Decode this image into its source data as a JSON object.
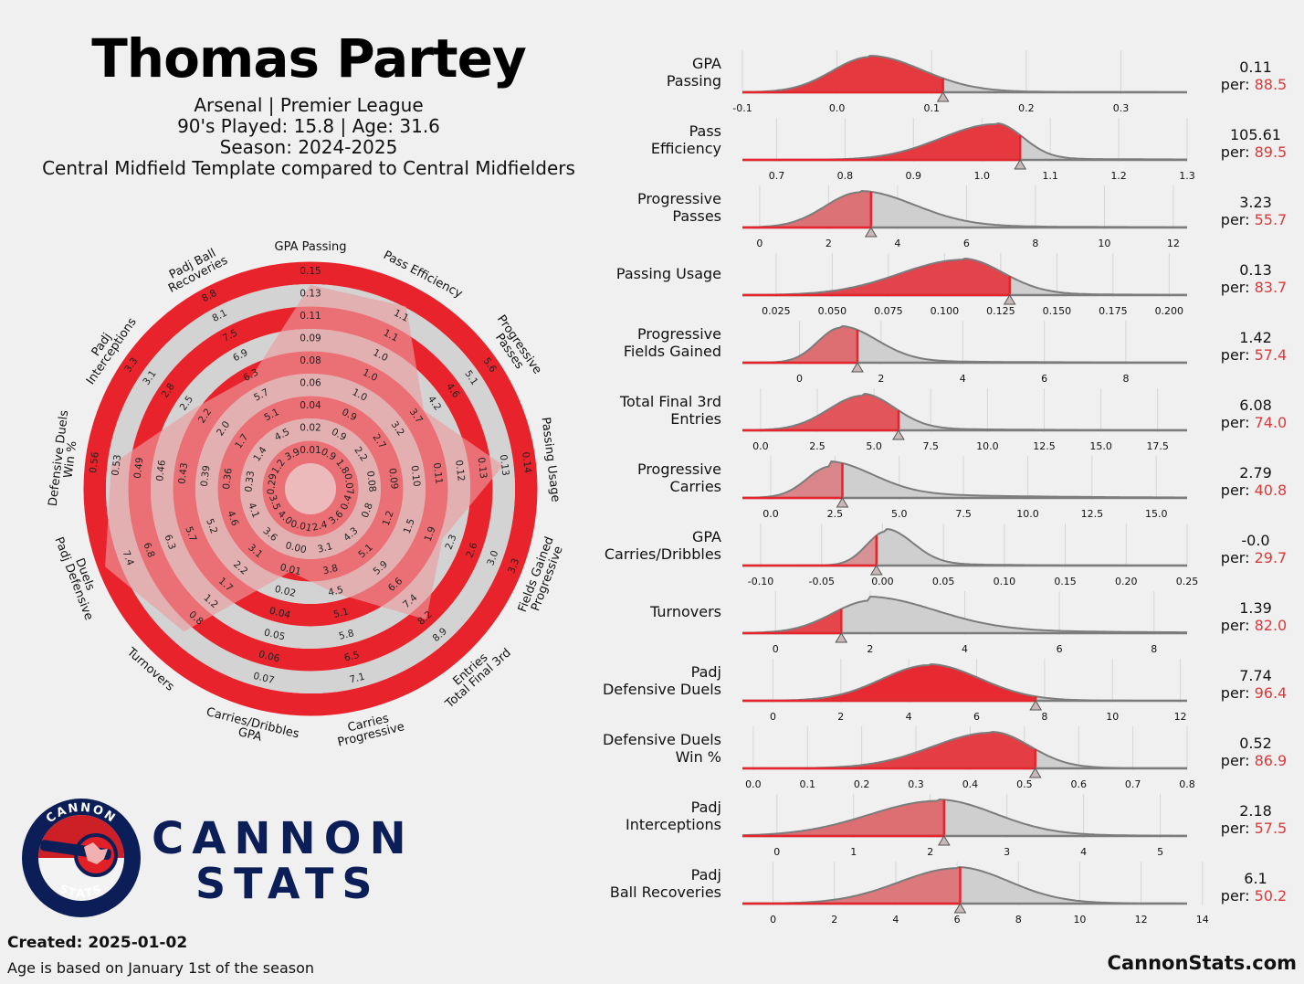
{
  "header": {
    "player_name": "Thomas Partey",
    "club_league": "Arsenal | Premier League",
    "played_age": "90's Played: 15.8 | Age: 31.6",
    "season": "Season: 2024-2025",
    "template": "Central Midfield Template compared to Central Midfielders"
  },
  "footer": {
    "created": "Created: 2025-01-02",
    "age_note": "Age is based on January 1st of the season",
    "site": "CannonStats.com"
  },
  "logo": {
    "ring_top": "CANNON",
    "ring_bottom": "STATS",
    "word1": "CANNON",
    "word2": "STATS"
  },
  "per_prefix": "per: ",
  "colors": {
    "red": "#e8232b",
    "red_text": "#d93a3a",
    "ring": "#d3d3d3",
    "grey_fill": "#cfcfcf",
    "grey_line": "#7c7c7c",
    "navy": "#0b1e57"
  },
  "chart_data": [
    {
      "type": "radar",
      "title": "Central Midfield Template",
      "categories": [
        {
          "label": [
            "GPA Passing"
          ],
          "ticks": [
            "0.01",
            "0.02",
            "0.04",
            "0.06",
            "0.08",
            "0.09",
            "0.11",
            "0.13",
            "0.15"
          ],
          "percentile": 88.5
        },
        {
          "label": [
            "Pass Efficiency"
          ],
          "ticks": [
            "0.9",
            "0.9",
            "0.9",
            "1.0",
            "1.0",
            "1.0",
            "1.1",
            "1.1"
          ],
          "percentile": 89.5
        },
        {
          "label": [
            "Progressive",
            "Passes"
          ],
          "ticks": [
            "1.8",
            "2.2",
            "2.7",
            "3.2",
            "3.7",
            "4.2",
            "4.6",
            "5.1",
            "5.6"
          ],
          "percentile": 55.7
        },
        {
          "label": [
            "Passing Usage"
          ],
          "ticks": [
            "0.07",
            "0.08",
            "0.09",
            "0.10",
            "0.11",
            "0.12",
            "0.13",
            "0.13",
            "0.14"
          ],
          "percentile": 83.7
        },
        {
          "label": [
            "Progressive",
            "Fields Gained"
          ],
          "ticks": [
            "0.4",
            "0.8",
            "1.2",
            "1.5",
            "1.9",
            "2.3",
            "2.6",
            "3.0",
            "3.3"
          ],
          "percentile": 57.4
        },
        {
          "label": [
            "Total Final 3rd",
            "Entries"
          ],
          "ticks": [
            "3.6",
            "4.3",
            "5.1",
            "5.9",
            "6.6",
            "7.4",
            "8.2",
            "8.9"
          ],
          "percentile": 74.0
        },
        {
          "label": [
            "Progressive",
            "Carries"
          ],
          "ticks": [
            "2.4",
            "3.1",
            "3.8",
            "4.5",
            "5.1",
            "5.8",
            "6.5",
            "7.1"
          ],
          "percentile": 40.8
        },
        {
          "label": [
            "GPA",
            "Carries/Dribbles"
          ],
          "ticks": [
            "0.01",
            "0.00",
            "0.01",
            "0.02",
            "0.04",
            "0.05",
            "0.06",
            "0.07"
          ],
          "percentile": 29.7
        },
        {
          "label": [
            "Turnovers"
          ],
          "ticks": [
            "4.0",
            "3.6",
            "3.1",
            "2.2",
            "1.7",
            "1.2",
            "0.8"
          ],
          "percentile": 82.0
        },
        {
          "label": [
            "Padj Defensive",
            "Duels"
          ],
          "ticks": [
            "3.5",
            "4.1",
            "4.6",
            "5.2",
            "5.7",
            "6.3",
            "6.8",
            "7.4"
          ],
          "percentile": 96.4
        },
        {
          "label": [
            "Defensive Duels",
            "Win %"
          ],
          "ticks": [
            "0.29",
            "0.33",
            "0.36",
            "0.39",
            "0.43",
            "0.46",
            "0.49",
            "0.53",
            "0.56"
          ],
          "percentile": 86.9
        },
        {
          "label": [
            "Padj",
            "Interceptions"
          ],
          "ticks": [
            "1.2",
            "1.4",
            "1.7",
            "2.0",
            "2.2",
            "2.5",
            "2.8",
            "3.1",
            "3.3"
          ],
          "percentile": 57.5
        },
        {
          "label": [
            "Padj Ball",
            "Recoveries"
          ],
          "ticks": [
            "3.9",
            "4.5",
            "5.1",
            "5.7",
            "6.3",
            "6.9",
            "7.5",
            "8.1",
            "8.8"
          ],
          "percentile": 50.2
        }
      ]
    },
    {
      "type": "area",
      "description": "Distribution of each metric among Central Midfielders with the player's value marked",
      "metrics": [
        {
          "label": [
            "GPA",
            "Passing"
          ],
          "value": "0.11",
          "percentile": "88.5",
          "xlim": [
            -0.1,
            0.37
          ],
          "ticks": [
            "-0.1",
            "0.0",
            "0.1",
            "0.2",
            "0.3"
          ],
          "tick_values": [
            -0.1,
            0.0,
            0.1,
            0.2,
            0.3
          ],
          "player": 0.112,
          "mode": 0.035,
          "spread_left": 0.04,
          "spread_right": 0.055,
          "tail": 0.12,
          "tail_weight": 0.05
        },
        {
          "label": [
            "Pass",
            "Efficiency"
          ],
          "value": "105.61",
          "percentile": "89.5",
          "xlim": [
            0.65,
            1.3
          ],
          "ticks": [
            "0.7",
            "0.8",
            "0.9",
            "1.0",
            "1.1",
            "1.2",
            "1.3"
          ],
          "tick_values": [
            0.7,
            0.8,
            0.9,
            1.0,
            1.1,
            1.2,
            1.3
          ],
          "player": 1.056,
          "mode": 1.02,
          "spread_left": 0.08,
          "spread_right": 0.04,
          "tail": 0.25,
          "tail_weight": 0.04
        },
        {
          "label": [
            "Progressive",
            "Passes"
          ],
          "value": "3.23",
          "percentile": "55.7",
          "xlim": [
            -0.5,
            12.4
          ],
          "ticks": [
            "0",
            "2",
            "4",
            "6",
            "8",
            "10",
            "12"
          ],
          "tick_values": [
            0,
            2,
            4,
            6,
            8,
            10,
            12
          ],
          "player": 3.23,
          "mode": 2.9,
          "spread_left": 1.0,
          "spread_right": 1.6,
          "tail": 5.5,
          "tail_weight": 0.06
        },
        {
          "label": [
            "Passing Usage"
          ],
          "value": "0.13",
          "percentile": "83.7",
          "xlim": [
            0.01,
            0.208
          ],
          "ticks": [
            "0.025",
            "0.050",
            "0.075",
            "0.100",
            "0.125",
            "0.150",
            "0.175",
            "0.200"
          ],
          "tick_values": [
            0.025,
            0.05,
            0.075,
            0.1,
            0.125,
            0.15,
            0.175,
            0.2
          ],
          "player": 0.129,
          "mode": 0.108,
          "spread_left": 0.028,
          "spread_right": 0.018,
          "tail": 0.06,
          "tail_weight": 0.05
        },
        {
          "label": [
            "Progressive",
            "Fields Gained"
          ],
          "value": "1.42",
          "percentile": "57.4",
          "xlim": [
            -1.4,
            9.5
          ],
          "ticks": [
            "0",
            "2",
            "4",
            "6",
            "8"
          ],
          "tick_values": [
            0,
            2,
            4,
            6,
            8
          ],
          "player": 1.42,
          "mode": 1.0,
          "spread_left": 0.55,
          "spread_right": 0.9,
          "tail": 3.5,
          "tail_weight": 0.07
        },
        {
          "label": [
            "Total Final 3rd",
            "Entries"
          ],
          "value": "6.08",
          "percentile": "74.0",
          "xlim": [
            -0.8,
            18.8
          ],
          "ticks": [
            "0.0",
            "2.5",
            "5.0",
            "7.5",
            "10.0",
            "12.5",
            "15.0",
            "17.5"
          ],
          "tick_values": [
            0,
            2.5,
            5,
            7.5,
            10,
            12.5,
            15,
            17.5
          ],
          "player": 6.08,
          "mode": 4.5,
          "spread_left": 1.5,
          "spread_right": 1.4,
          "tail": 5.0,
          "tail_weight": 0.08
        },
        {
          "label": [
            "Progressive",
            "Carries"
          ],
          "value": "2.79",
          "percentile": "40.8",
          "xlim": [
            -1.1,
            16.2
          ],
          "ticks": [
            "0.0",
            "2.5",
            "5.0",
            "7.5",
            "10.0",
            "12.5",
            "15.0"
          ],
          "tick_values": [
            0,
            2.5,
            5,
            7.5,
            10,
            12.5,
            15
          ],
          "player": 2.79,
          "mode": 2.3,
          "spread_left": 0.9,
          "spread_right": 1.7,
          "tail": 5.0,
          "tail_weight": 0.25
        },
        {
          "label": [
            "GPA",
            "Carries/Dribbles"
          ],
          "value": "-0.0",
          "percentile": "29.7",
          "xlim": [
            -0.115,
            0.25
          ],
          "ticks": [
            "-0.10",
            "-0.05",
            "0.00",
            "0.05",
            "0.10",
            "0.15",
            "0.20",
            "0.25"
          ],
          "tick_values": [
            -0.1,
            -0.05,
            0.0,
            0.05,
            0.1,
            0.15,
            0.2,
            0.25
          ],
          "player": -0.005,
          "mode": 0.003,
          "spread_left": 0.016,
          "spread_right": 0.022,
          "tail": 0.06,
          "tail_weight": 0.1
        },
        {
          "label": [
            "Turnovers"
          ],
          "value": "1.39",
          "percentile": "82.0",
          "xlim": [
            -0.7,
            8.7
          ],
          "ticks": [
            "0",
            "2",
            "4",
            "6",
            "8"
          ],
          "tick_values": [
            0,
            2,
            4,
            6,
            8
          ],
          "player": 1.39,
          "mode": 2.0,
          "spread_left": 0.8,
          "spread_right": 1.4,
          "tail": 3.5,
          "tail_weight": 0.18
        },
        {
          "label": [
            "Padj",
            "Defensive Duels"
          ],
          "value": "7.74",
          "percentile": "96.4",
          "xlim": [
            -0.9,
            12.2
          ],
          "ticks": [
            "0",
            "2",
            "4",
            "6",
            "8",
            "10",
            "12"
          ],
          "tick_values": [
            0,
            2,
            4,
            6,
            8,
            10,
            12
          ],
          "player": 7.74,
          "mode": 4.6,
          "spread_left": 1.4,
          "spread_right": 1.5,
          "tail": 2.5,
          "tail_weight": 0.04
        },
        {
          "label": [
            "Defensive Duels",
            "Win %"
          ],
          "value": "0.52",
          "percentile": "86.9",
          "xlim": [
            -0.02,
            0.8
          ],
          "ticks": [
            "0.0",
            "0.1",
            "0.2",
            "0.3",
            "0.4",
            "0.5",
            "0.6",
            "0.7",
            "0.8"
          ],
          "tick_values": [
            0,
            0.1,
            0.2,
            0.3,
            0.4,
            0.5,
            0.6,
            0.7,
            0.8
          ],
          "player": 0.52,
          "mode": 0.44,
          "spread_left": 0.11,
          "spread_right": 0.07,
          "tail": 0.2,
          "tail_weight": 0.03
        },
        {
          "label": [
            "Padj",
            "Interceptions"
          ],
          "value": "2.18",
          "percentile": "57.5",
          "xlim": [
            -0.45,
            5.35
          ],
          "ticks": [
            "0",
            "1",
            "2",
            "3",
            "4",
            "5"
          ],
          "tick_values": [
            0,
            1,
            2,
            3,
            4,
            5
          ],
          "player": 2.18,
          "mode": 2.1,
          "spread_left": 0.9,
          "spread_right": 0.75,
          "tail": 1.6,
          "tail_weight": 0.06
        },
        {
          "label": [
            "Padj",
            "Ball Recoveries"
          ],
          "value": "6.1",
          "percentile": "50.2",
          "xlim": [
            -1.0,
            13.5
          ],
          "ticks": [
            "0",
            "2",
            "4",
            "6",
            "8",
            "10",
            "12",
            "14"
          ],
          "tick_values": [
            0,
            2,
            4,
            6,
            8,
            10,
            12,
            14
          ],
          "player": 6.1,
          "mode": 6.0,
          "spread_left": 1.9,
          "spread_right": 1.7,
          "tail": 2.8,
          "tail_weight": 0.05
        }
      ]
    }
  ]
}
